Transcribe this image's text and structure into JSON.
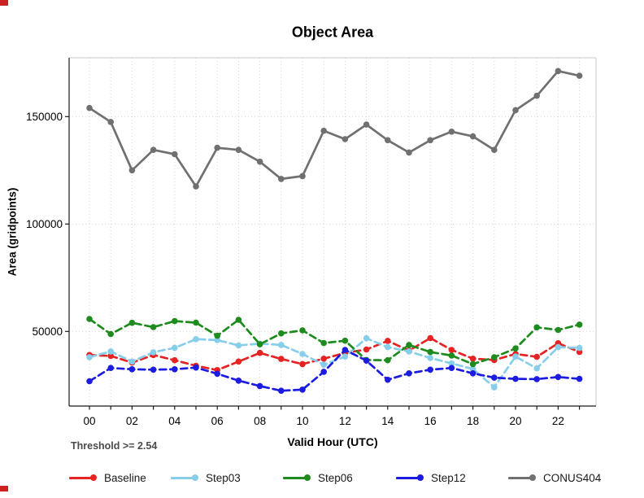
{
  "title": "Object Area",
  "threshold_label": "Threshold >= 2.54",
  "corner_marker_color": "#cc2222",
  "axes": {
    "y_tick_values": [
      50000,
      100000,
      150000
    ],
    "y_tick_labels": [
      "50000",
      "100000",
      "150000"
    ],
    "x_hours": [
      0,
      1,
      2,
      3,
      4,
      5,
      6,
      7,
      8,
      9,
      10,
      11,
      12,
      13,
      14,
      15,
      16,
      17,
      18,
      19,
      20,
      21,
      22,
      23
    ],
    "x_labeled_hours": [
      0,
      2,
      4,
      6,
      8,
      10,
      12,
      14,
      16,
      18,
      20,
      22
    ],
    "x_tick_labels": [
      "00",
      "02",
      "04",
      "06",
      "08",
      "10",
      "12",
      "14",
      "16",
      "18",
      "20",
      "22"
    ]
  },
  "chart_data": {
    "type": "line",
    "title": "Object Area",
    "xlabel": "Valid Hour (UTC)",
    "ylabel": "Area (gridpoints)",
    "x": [
      0,
      1,
      2,
      3,
      4,
      5,
      6,
      7,
      8,
      9,
      10,
      11,
      12,
      13,
      14,
      15,
      16,
      17,
      18,
      19,
      20,
      21,
      22,
      23
    ],
    "ylim": [
      15000,
      177500
    ],
    "grid": true,
    "legend_position": "bottom",
    "series": [
      {
        "name": "Baseline",
        "color": "#e62222",
        "dashed": true,
        "values": [
          39000,
          38600,
          35500,
          39000,
          36600,
          34000,
          32000,
          36000,
          40000,
          37200,
          34800,
          37300,
          40000,
          41600,
          45600,
          41100,
          46900,
          41400,
          37300,
          36700,
          39500,
          38200,
          44500,
          40500
        ]
      },
      {
        "name": "Step03",
        "color": "#87ceeb",
        "dashed": true,
        "values": [
          38000,
          40700,
          36000,
          40300,
          42400,
          46400,
          46000,
          43500,
          44300,
          43700,
          39500,
          34500,
          38300,
          46800,
          42700,
          40700,
          37600,
          35100,
          32500,
          24000,
          38300,
          32800,
          42700,
          42300
        ]
      },
      {
        "name": "Step06",
        "color": "#1e8b1e",
        "dashed": true,
        "values": [
          55800,
          48800,
          54000,
          52000,
          54800,
          54100,
          48000,
          55400,
          44000,
          49100,
          50500,
          44600,
          45700,
          36700,
          36600,
          43700,
          40400,
          38800,
          34800,
          38000,
          42100,
          51900,
          50700,
          53200
        ]
      },
      {
        "name": "Step12",
        "color": "#1c1ce0",
        "dashed": true,
        "values": [
          26800,
          33000,
          32400,
          32200,
          32400,
          33200,
          30300,
          27100,
          24600,
          22400,
          22900,
          31200,
          41400,
          36400,
          27500,
          30500,
          32200,
          33000,
          30500,
          28500,
          27900,
          27800,
          28800,
          27900
        ]
      },
      {
        "name": "CONUS404",
        "color": "#707070",
        "dashed": false,
        "values": [
          154000,
          147500,
          125000,
          134500,
          132500,
          117500,
          135500,
          134500,
          129000,
          121000,
          122300,
          143400,
          139500,
          146300,
          139000,
          133300,
          139000,
          143000,
          140800,
          134500,
          153000,
          159700,
          171200,
          169000
        ]
      }
    ]
  },
  "legend_item_lefts": [
    85,
    210,
    348,
    487,
    625
  ]
}
